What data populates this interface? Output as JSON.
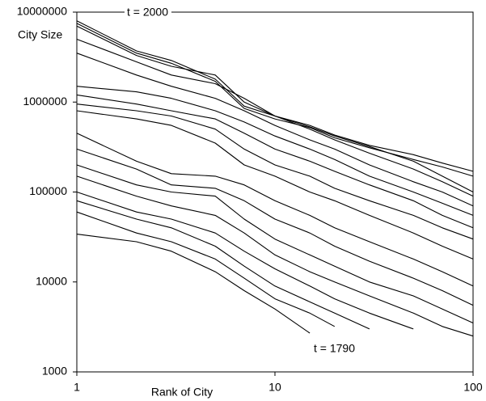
{
  "chart_data": {
    "type": "line",
    "x_label": "Rank of City",
    "y_label": "City Size",
    "annotations": [
      {
        "text": "t = 2000"
      },
      {
        "text": "t = 1790"
      }
    ],
    "log_x": true,
    "log_y": true,
    "xlim": [
      1,
      100
    ],
    "xticks": [
      1,
      10,
      100
    ],
    "ylim": [
      1000,
      10000000
    ],
    "yticks": [
      1000,
      10000,
      100000,
      1000000,
      10000000
    ],
    "x": [
      1,
      2,
      3,
      5,
      7,
      10,
      15,
      20,
      30,
      50,
      70,
      100
    ],
    "series": [
      {
        "color": "#000000",
        "values": [
          8000000,
          3700000,
          2900000,
          1800000,
          900000,
          700000,
          550000,
          430000,
          330000,
          260000,
          210000,
          170000
        ]
      },
      {
        "color": "#000000",
        "values": [
          7500000,
          3500000,
          2700000,
          1700000,
          850000,
          650000,
          520000,
          400000,
          310000,
          230000,
          190000,
          150000
        ]
      },
      {
        "color": "#000000",
        "values": [
          7000000,
          3300000,
          2500000,
          2000000,
          1000000,
          700000,
          530000,
          420000,
          320000,
          220000,
          150000,
          100000
        ]
      },
      {
        "color": "#000000",
        "values": [
          5000000,
          2800000,
          2000000,
          1600000,
          1100000,
          700000,
          500000,
          380000,
          270000,
          180000,
          130000,
          90000
        ]
      },
      {
        "color": "#000000",
        "values": [
          3500000,
          2000000,
          1500000,
          1100000,
          800000,
          550000,
          380000,
          300000,
          200000,
          130000,
          100000,
          70000
        ]
      },
      {
        "color": "#000000",
        "values": [
          1500000,
          1300000,
          1100000,
          800000,
          600000,
          420000,
          300000,
          230000,
          150000,
          100000,
          75000,
          55000
        ]
      },
      {
        "color": "#000000",
        "values": [
          1200000,
          950000,
          800000,
          650000,
          450000,
          300000,
          220000,
          170000,
          120000,
          80000,
          55000,
          40000
        ]
      },
      {
        "color": "#000000",
        "values": [
          950000,
          800000,
          700000,
          500000,
          300000,
          200000,
          150000,
          110000,
          80000,
          55000,
          40000,
          30000
        ]
      },
      {
        "color": "#000000",
        "values": [
          800000,
          650000,
          550000,
          350000,
          200000,
          150000,
          100000,
          80000,
          55000,
          35000,
          25000,
          18000
        ]
      },
      {
        "color": "#000000",
        "values": [
          450000,
          220000,
          160000,
          150000,
          120000,
          80000,
          55000,
          40000,
          28000,
          18000,
          13000,
          9000
        ]
      },
      {
        "color": "#000000",
        "values": [
          300000,
          180000,
          120000,
          110000,
          80000,
          50000,
          35000,
          25000,
          17000,
          11000,
          8000,
          5500
        ]
      },
      {
        "color": "#000000",
        "values": [
          200000,
          120000,
          100000,
          90000,
          50000,
          30000,
          20000,
          15000,
          10000,
          7000,
          5000,
          3500
        ]
      },
      {
        "color": "#000000",
        "values": [
          150000,
          90000,
          70000,
          55000,
          35000,
          20000,
          13000,
          10000,
          7000,
          4500,
          3200,
          2500
        ]
      },
      {
        "color": "#000000",
        "values": [
          100000,
          60000,
          50000,
          35000,
          22000,
          14000,
          9000,
          6500,
          4500,
          3000,
          null,
          null
        ]
      },
      {
        "color": "#000000",
        "values": [
          80000,
          50000,
          40000,
          25000,
          15000,
          9000,
          6000,
          4500,
          3000,
          null,
          null,
          null
        ]
      },
      {
        "color": "#000000",
        "values": [
          60000,
          35000,
          28000,
          18000,
          11000,
          6500,
          4500,
          3200,
          null,
          null,
          null,
          null
        ]
      },
      {
        "color": "#000000",
        "values": [
          34000,
          28000,
          22000,
          13000,
          8000,
          5000,
          2700,
          null,
          null,
          null,
          null,
          null
        ]
      }
    ]
  }
}
